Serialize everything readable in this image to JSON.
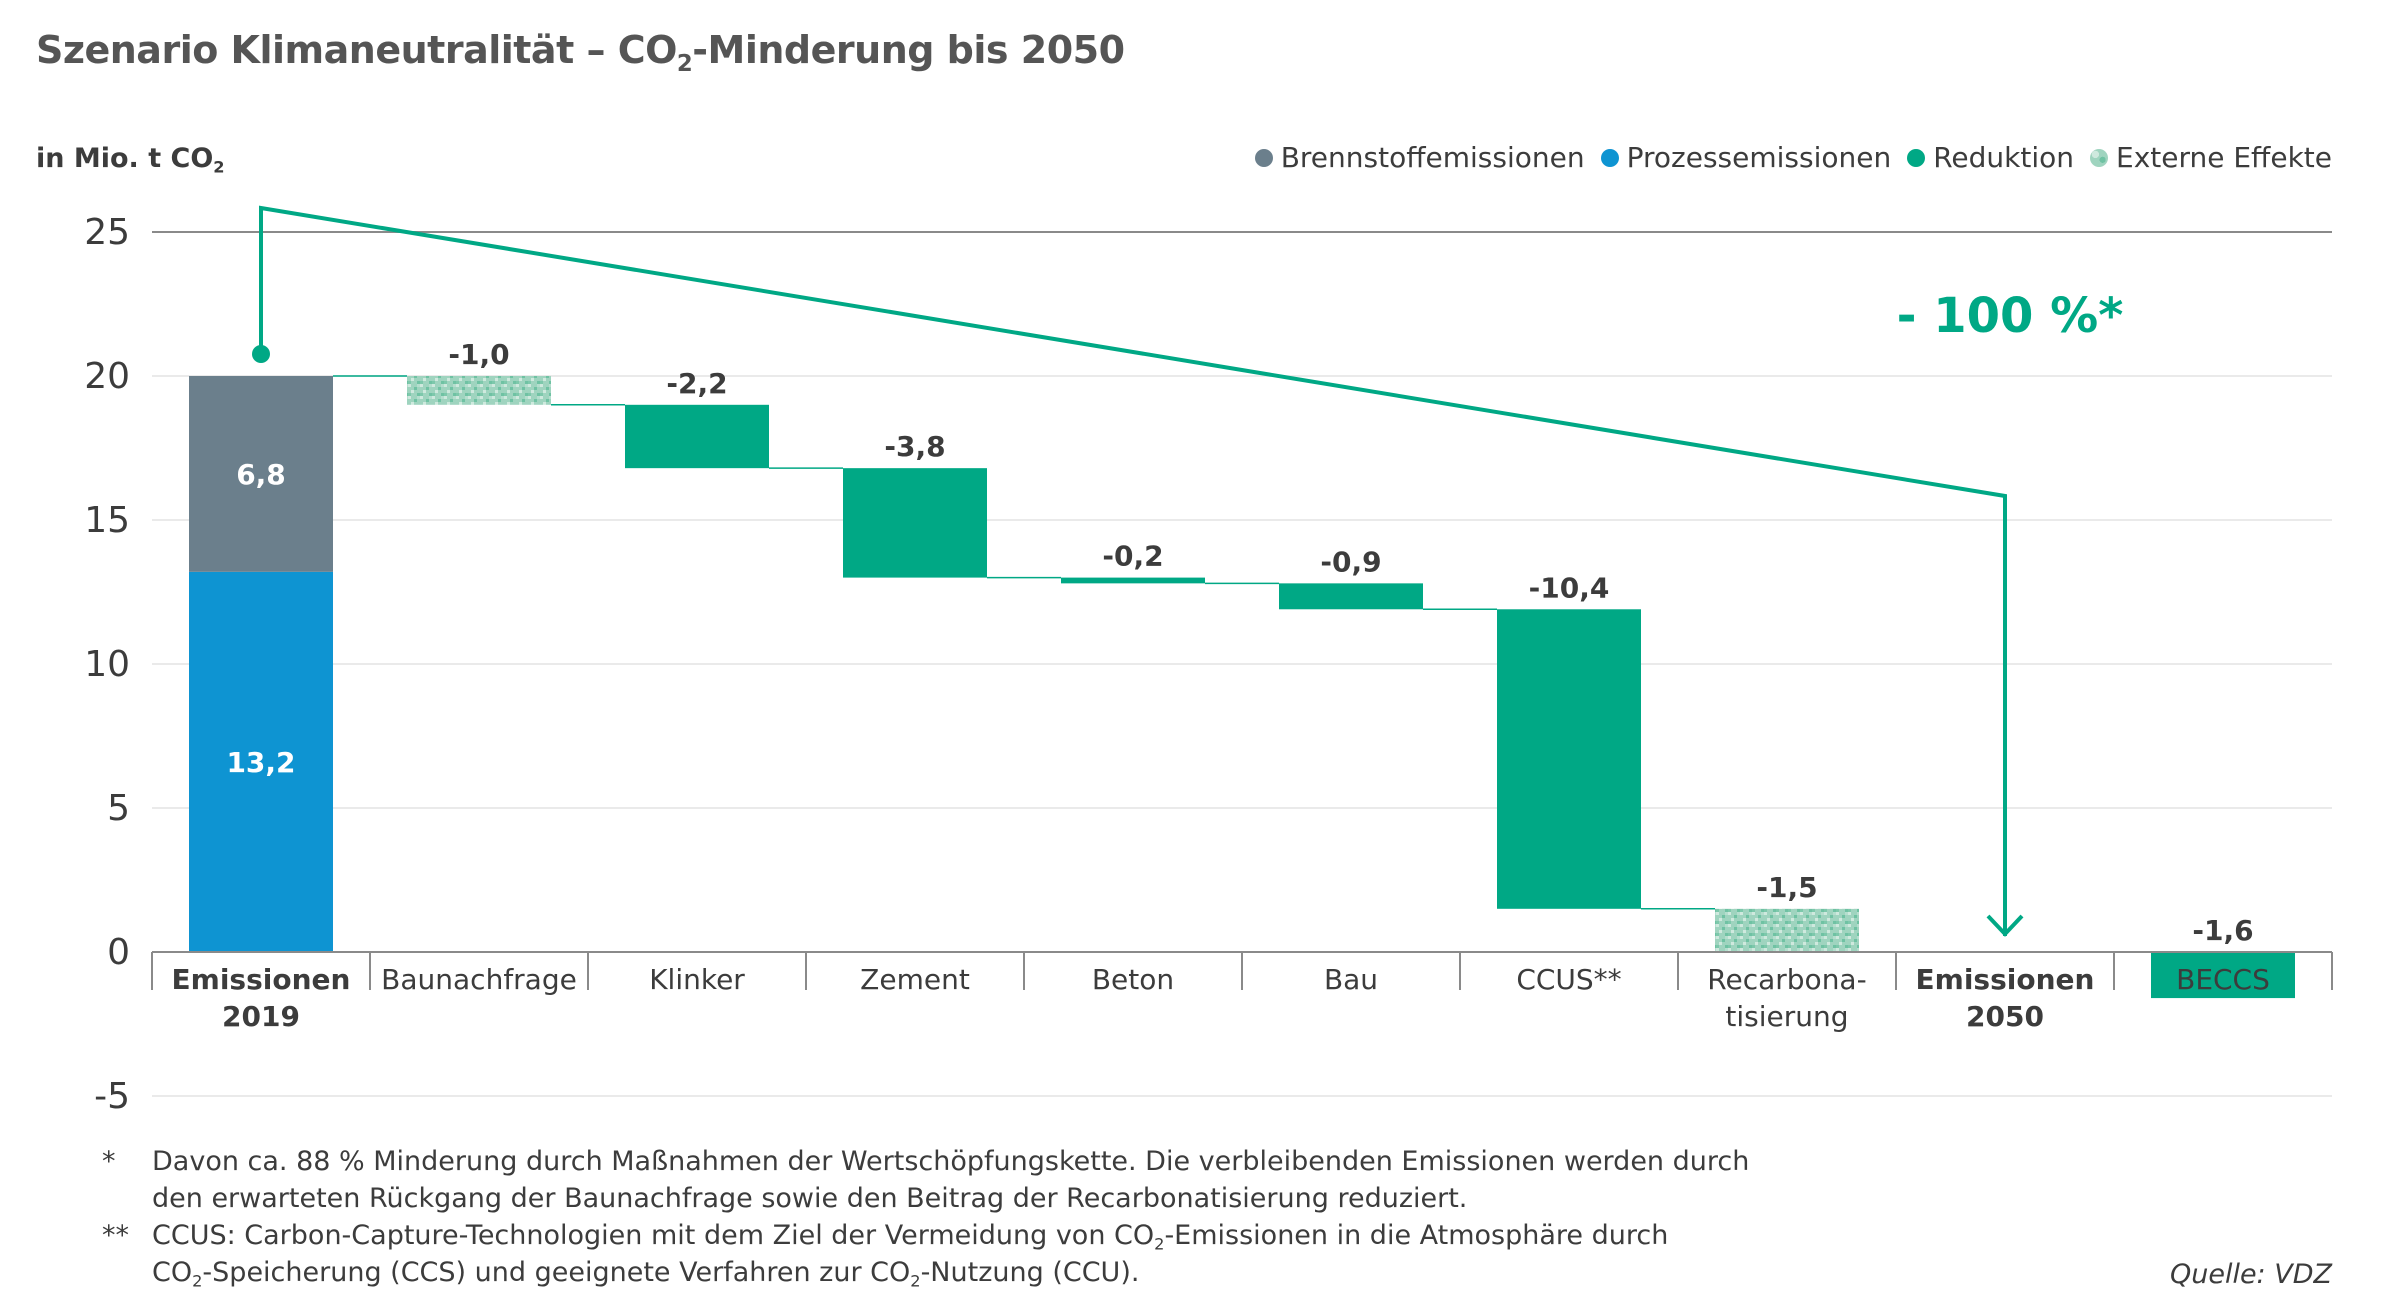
{
  "title": {
    "pre": "Szenario Klimaneutralität – CO",
    "sub": "2",
    "post": "-Minderung bis 2050"
  },
  "unit": {
    "pre": "in Mio. t CO",
    "sub": "2"
  },
  "legend": [
    {
      "label": "Brennstoffemissionen",
      "color": "#6b7f8c",
      "pattern": false
    },
    {
      "label": "Prozessemissionen",
      "color": "#0e94d2",
      "pattern": false
    },
    {
      "label": "Reduktion",
      "color": "#00a885",
      "pattern": false
    },
    {
      "label": "Externe Effekte",
      "color": "#9fd4bf",
      "pattern": true
    }
  ],
  "annotation": "- 100 %*",
  "chart_data": {
    "type": "bar",
    "subtype": "waterfall",
    "ylim": [
      -5,
      25
    ],
    "yticks": [
      25,
      20,
      15,
      10,
      5,
      0,
      -5
    ],
    "ylabel": "in Mio. t CO2",
    "categories": [
      {
        "lines": [
          "Emissionen",
          "2019"
        ],
        "bold": true
      },
      {
        "lines": [
          "Baunachfrage"
        ],
        "bold": false
      },
      {
        "lines": [
          "Klinker"
        ],
        "bold": false
      },
      {
        "lines": [
          "Zement"
        ],
        "bold": false
      },
      {
        "lines": [
          "Beton"
        ],
        "bold": false
      },
      {
        "lines": [
          "Bau"
        ],
        "bold": false
      },
      {
        "lines": [
          "CCUS**"
        ],
        "bold": false
      },
      {
        "lines": [
          "Recarbona-",
          "tisierung"
        ],
        "bold": false
      },
      {
        "lines": [
          "Emissionen",
          "2050"
        ],
        "bold": true
      },
      {
        "lines": [
          "BECCS"
        ],
        "bold": false
      }
    ],
    "stack_2019": [
      {
        "series": "Prozessemissionen",
        "value": 13.2,
        "label": "13,2"
      },
      {
        "series": "Brennstoffemissionen",
        "value": 6.8,
        "label": "6,8"
      }
    ],
    "steps": [
      {
        "category": "Baunachfrage",
        "value": -1.0,
        "label": "-1,0",
        "series": "Externe Effekte"
      },
      {
        "category": "Klinker",
        "value": -2.2,
        "label": "-2,2",
        "series": "Reduktion"
      },
      {
        "category": "Zement",
        "value": -3.8,
        "label": "-3,8",
        "series": "Reduktion"
      },
      {
        "category": "Beton",
        "value": -0.2,
        "label": "-0,2",
        "series": "Reduktion"
      },
      {
        "category": "Bau",
        "value": -0.9,
        "label": "-0,9",
        "series": "Reduktion"
      },
      {
        "category": "CCUS**",
        "value": -10.4,
        "label": "-10,4",
        "series": "Reduktion"
      },
      {
        "category": "Recarbona-tisierung",
        "value": -1.5,
        "label": "-1,5",
        "series": "Externe Effekte"
      }
    ],
    "total_2050": 0,
    "beccs": {
      "value": -1.6,
      "label": "-1,6",
      "series": "Reduktion"
    },
    "grid": true
  },
  "footnotes": [
    {
      "mark": "*",
      "lines": [
        {
          "parts": [
            {
              "t": "Davon ca. 88 % Minderung durch Maßnahmen der Wertschöpfungskette. Die verbleibenden Emissionen werden durch"
            }
          ]
        },
        {
          "parts": [
            {
              "t": "den erwarteten Rückgang der Baunachfrage sowie den Beitrag der Recarbonatisierung reduziert."
            }
          ]
        }
      ]
    },
    {
      "mark": "**",
      "lines": [
        {
          "parts": [
            {
              "t": "CCUS: Carbon-Capture-Technologien mit dem Ziel der Vermeidung von CO"
            },
            {
              "t": "2",
              "sub": true
            },
            {
              "t": "-Emissionen in die Atmosphäre durch"
            }
          ]
        },
        {
          "parts": [
            {
              "t": "CO"
            },
            {
              "t": "2",
              "sub": true
            },
            {
              "t": "-Speicherung (CCS) und geeignete Verfahren zur CO"
            },
            {
              "t": "2",
              "sub": true
            },
            {
              "t": "-Nutzung (CCU)."
            }
          ]
        }
      ]
    }
  ],
  "source": "Quelle: VDZ"
}
